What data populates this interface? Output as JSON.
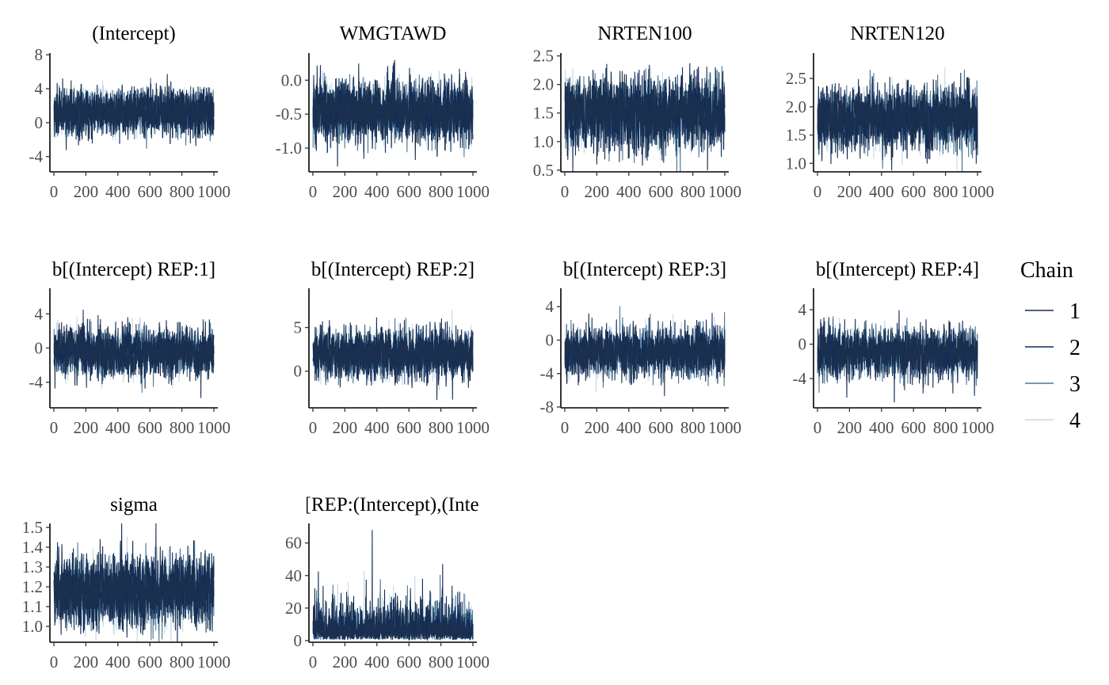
{
  "chart_data": {
    "type": "line",
    "layout": "facet grid, 4 columns",
    "x_ticks": [
      0,
      200,
      400,
      600,
      800,
      1000
    ],
    "xlim": [
      0,
      1000
    ],
    "grid": false,
    "legend": {
      "title": "Chain",
      "placement": "right",
      "entries": [
        "1",
        "2",
        "3",
        "4"
      ],
      "colors": [
        "#1b2f4f",
        "#0f2d59",
        "#4e7893",
        "#c6d9e6"
      ]
    },
    "draw_order": [
      3,
      2,
      1,
      0
    ],
    "panels": [
      {
        "title": "(Intercept)",
        "ylim": [
          -5.8,
          8.2
        ],
        "y_ticks": [
          -4,
          0,
          4,
          8
        ],
        "y_tick_labels": [
          "-4",
          "0",
          "4",
          "8"
        ],
        "series": [
          {
            "name": "1",
            "mean": 1.3,
            "sd": 1.35,
            "ar": 0.3
          },
          {
            "name": "2",
            "mean": 1.3,
            "sd": 1.35,
            "ar": 0.3
          },
          {
            "name": "3",
            "mean": 1.3,
            "sd": 1.3,
            "ar": 0.3
          },
          {
            "name": "4",
            "mean": 1.3,
            "sd": 1.25,
            "ar": 0.3
          }
        ]
      },
      {
        "title": "WMGTAWD",
        "ylim": [
          -1.35,
          0.4
        ],
        "y_ticks": [
          -1.0,
          -0.5,
          0.0
        ],
        "y_tick_labels": [
          "-1.0",
          "-0.5",
          "0.0"
        ],
        "series": [
          {
            "name": "1",
            "mean": -0.45,
            "sd": 0.22,
            "ar": 0.3
          },
          {
            "name": "2",
            "mean": -0.45,
            "sd": 0.22,
            "ar": 0.3
          },
          {
            "name": "3",
            "mean": -0.45,
            "sd": 0.21,
            "ar": 0.3
          },
          {
            "name": "4",
            "mean": -0.45,
            "sd": 0.2,
            "ar": 0.3
          }
        ]
      },
      {
        "title": "NRTEN100",
        "ylim": [
          0.47,
          2.55
        ],
        "y_ticks": [
          0.5,
          1.0,
          1.5,
          2.0,
          2.5
        ],
        "y_tick_labels": [
          "0.5",
          "1.0",
          "1.5",
          "2.0",
          "2.5"
        ],
        "series": [
          {
            "name": "1",
            "mean": 1.5,
            "sd": 0.3,
            "ar": 0.3
          },
          {
            "name": "2",
            "mean": 1.5,
            "sd": 0.3,
            "ar": 0.3
          },
          {
            "name": "3",
            "mean": 1.5,
            "sd": 0.29,
            "ar": 0.3
          },
          {
            "name": "4",
            "mean": 1.5,
            "sd": 0.28,
            "ar": 0.3
          }
        ]
      },
      {
        "title": "NRTEN120",
        "ylim": [
          0.85,
          2.95
        ],
        "y_ticks": [
          1.0,
          1.5,
          2.0,
          2.5
        ],
        "y_tick_labels": [
          "1.0",
          "1.5",
          "2.0",
          "2.5"
        ],
        "series": [
          {
            "name": "1",
            "mean": 1.8,
            "sd": 0.27,
            "ar": 0.3
          },
          {
            "name": "2",
            "mean": 1.8,
            "sd": 0.27,
            "ar": 0.3
          },
          {
            "name": "3",
            "mean": 1.8,
            "sd": 0.26,
            "ar": 0.3
          },
          {
            "name": "4",
            "mean": 1.8,
            "sd": 0.25,
            "ar": 0.3
          }
        ]
      },
      {
        "title": "b[(Intercept) REP:1]",
        "ylim": [
          -7,
          7
        ],
        "y_ticks": [
          -4,
          0,
          4
        ],
        "y_tick_labels": [
          "-4",
          "0",
          "4"
        ],
        "series": [
          {
            "name": "1",
            "mean": -0.5,
            "sd": 1.4,
            "ar": 0.3
          },
          {
            "name": "2",
            "mean": -0.5,
            "sd": 1.4,
            "ar": 0.3
          },
          {
            "name": "3",
            "mean": -0.5,
            "sd": 1.35,
            "ar": 0.3
          },
          {
            "name": "4",
            "mean": -0.5,
            "sd": 1.3,
            "ar": 0.3
          }
        ]
      },
      {
        "title": "b[(Intercept) REP:2]",
        "ylim": [
          -4.2,
          9.5
        ],
        "y_ticks": [
          0,
          5
        ],
        "y_tick_labels": [
          "0",
          "5"
        ],
        "series": [
          {
            "name": "1",
            "mean": 2.0,
            "sd": 1.4,
            "ar": 0.3
          },
          {
            "name": "2",
            "mean": 2.0,
            "sd": 1.4,
            "ar": 0.3
          },
          {
            "name": "3",
            "mean": 2.0,
            "sd": 1.35,
            "ar": 0.3
          },
          {
            "name": "4",
            "mean": 2.0,
            "sd": 1.3,
            "ar": 0.3
          }
        ]
      },
      {
        "title": "b[(Intercept) REP:3]",
        "ylim": [
          -8.1,
          6.2
        ],
        "y_ticks": [
          -8,
          -4,
          0,
          4
        ],
        "y_tick_labels": [
          "-8",
          "-4",
          "0",
          "4"
        ],
        "series": [
          {
            "name": "1",
            "mean": -1.5,
            "sd": 1.4,
            "ar": 0.3
          },
          {
            "name": "2",
            "mean": -1.5,
            "sd": 1.4,
            "ar": 0.3
          },
          {
            "name": "3",
            "mean": -1.5,
            "sd": 1.35,
            "ar": 0.3
          },
          {
            "name": "4",
            "mean": -1.5,
            "sd": 1.3,
            "ar": 0.3
          }
        ]
      },
      {
        "title": "b[(Intercept) REP:4]",
        "ylim": [
          -7.4,
          6.5
        ],
        "y_ticks": [
          -4,
          0,
          4
        ],
        "y_tick_labels": [
          "-4",
          "0",
          "4"
        ],
        "series": [
          {
            "name": "1",
            "mean": -1.0,
            "sd": 1.4,
            "ar": 0.3
          },
          {
            "name": "2",
            "mean": -1.0,
            "sd": 1.4,
            "ar": 0.3
          },
          {
            "name": "3",
            "mean": -1.0,
            "sd": 1.35,
            "ar": 0.3
          },
          {
            "name": "4",
            "mean": -1.0,
            "sd": 1.3,
            "ar": 0.3
          }
        ]
      },
      {
        "title": "sigma",
        "ylim": [
          0.92,
          1.52
        ],
        "y_ticks": [
          1.0,
          1.1,
          1.2,
          1.3,
          1.4,
          1.5
        ],
        "y_tick_labels": [
          "1.0",
          "1.1",
          "1.2",
          "1.3",
          "1.4",
          "1.5"
        ],
        "series": [
          {
            "name": "1",
            "mean": 1.18,
            "sd": 0.085,
            "ar": 0.3
          },
          {
            "name": "2",
            "mean": 1.18,
            "sd": 0.085,
            "ar": 0.3
          },
          {
            "name": "3",
            "mean": 1.18,
            "sd": 0.082,
            "ar": 0.3
          },
          {
            "name": "4",
            "mean": 1.18,
            "sd": 0.08,
            "ar": 0.3
          }
        ]
      },
      {
        "title": "Sigma[REP:(Intercept),(Intercept)]",
        "ylim": [
          -1,
          72
        ],
        "y_ticks": [
          0,
          20,
          40,
          60
        ],
        "y_tick_labels": [
          "0",
          "20",
          "40",
          "60"
        ],
        "series": [
          {
            "name": "1",
            "mean": 4.5,
            "sd": 3.2,
            "ar": 0.3,
            "min": 0.5
          },
          {
            "name": "2",
            "mean": 4.5,
            "sd": 3.2,
            "ar": 0.3,
            "min": 0.5
          },
          {
            "name": "3",
            "mean": 4.5,
            "sd": 3.0,
            "ar": 0.3,
            "min": 0.5
          },
          {
            "name": "4",
            "mean": 4.5,
            "sd": 2.8,
            "ar": 0.3,
            "min": 0.5
          }
        ],
        "spikes": [
          {
            "series": "2",
            "x": 370,
            "value": 68
          },
          {
            "series": "2",
            "x": 810,
            "value": 47
          },
          {
            "series": "4",
            "x": 220,
            "value": 36
          },
          {
            "series": "3",
            "x": 590,
            "value": 34
          },
          {
            "series": "2",
            "x": 210,
            "value": 30
          },
          {
            "series": "4",
            "x": 880,
            "value": 26
          }
        ]
      }
    ]
  }
}
